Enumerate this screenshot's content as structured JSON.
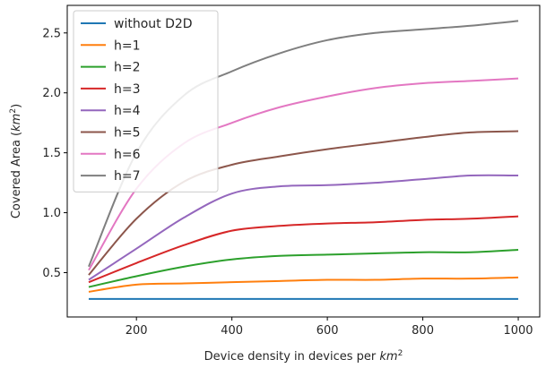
{
  "chart_data": {
    "type": "line",
    "xlabel": "Device density in devices per km²",
    "ylabel": "Covered Area (km²)",
    "xlim": [
      55,
      1045
    ],
    "ylim": [
      0.13,
      2.73
    ],
    "xticks": [
      200,
      400,
      600,
      800,
      1000
    ],
    "yticks": [
      0.5,
      1.0,
      1.5,
      2.0,
      2.5
    ],
    "xtick_labels": [
      "200",
      "400",
      "600",
      "800",
      "1000"
    ],
    "ytick_labels": [
      "0.5",
      "1.0",
      "1.5",
      "2.0",
      "2.5"
    ],
    "grid": false,
    "legend_position": "top-left",
    "x": [
      100,
      200,
      300,
      400,
      500,
      600,
      700,
      800,
      900,
      1000
    ],
    "series": [
      {
        "name": "without D2D",
        "color": "#1f77b4",
        "values": [
          0.28,
          0.28,
          0.28,
          0.28,
          0.28,
          0.28,
          0.28,
          0.28,
          0.28,
          0.28
        ]
      },
      {
        "name": "h=1",
        "color": "#ff7f0e",
        "values": [
          0.34,
          0.4,
          0.41,
          0.42,
          0.43,
          0.44,
          0.44,
          0.45,
          0.45,
          0.46
        ]
      },
      {
        "name": "h=2",
        "color": "#2ca02c",
        "values": [
          0.38,
          0.47,
          0.55,
          0.61,
          0.64,
          0.65,
          0.66,
          0.67,
          0.67,
          0.69
        ]
      },
      {
        "name": "h=3",
        "color": "#d62728",
        "values": [
          0.42,
          0.58,
          0.73,
          0.85,
          0.89,
          0.91,
          0.92,
          0.94,
          0.95,
          0.97
        ]
      },
      {
        "name": "h=4",
        "color": "#9467bd",
        "values": [
          0.44,
          0.7,
          0.96,
          1.16,
          1.22,
          1.23,
          1.25,
          1.28,
          1.31,
          1.31
        ]
      },
      {
        "name": "h=5",
        "color": "#8c564b",
        "values": [
          0.48,
          0.95,
          1.26,
          1.4,
          1.47,
          1.53,
          1.58,
          1.63,
          1.67,
          1.68
        ]
      },
      {
        "name": "h=6",
        "color": "#e377c2",
        "values": [
          0.52,
          1.2,
          1.58,
          1.75,
          1.88,
          1.97,
          2.04,
          2.08,
          2.1,
          2.12
        ]
      },
      {
        "name": "h=7",
        "color": "#7f7f7f",
        "values": [
          0.55,
          1.5,
          1.98,
          2.18,
          2.33,
          2.44,
          2.5,
          2.53,
          2.56,
          2.6
        ]
      }
    ]
  }
}
